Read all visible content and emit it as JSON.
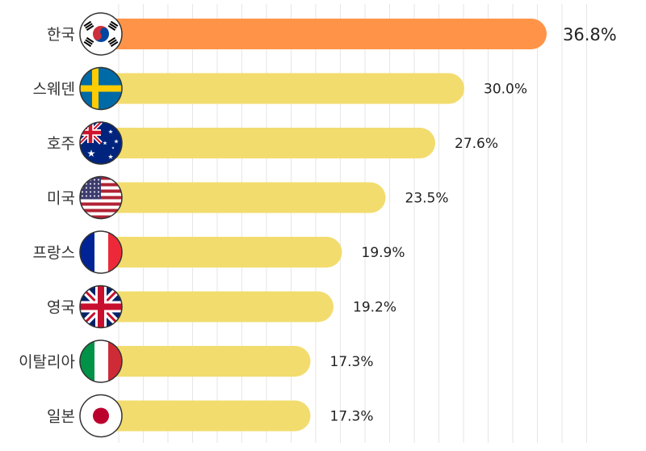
{
  "chart_data": {
    "type": "bar",
    "orientation": "horizontal",
    "title": "",
    "xlabel": "",
    "ylabel": "",
    "xlim": [
      0,
      40
    ],
    "grid": true,
    "categories": [
      "한국",
      "스웨덴",
      "호주",
      "미국",
      "프랑스",
      "영국",
      "이탈리아",
      "일본"
    ],
    "values": [
      36.8,
      30.0,
      27.6,
      23.5,
      19.9,
      19.2,
      17.3,
      17.3
    ],
    "value_labels": [
      "36.8%",
      "30.0%",
      "27.6%",
      "23.5%",
      "19.9%",
      "19.2%",
      "17.3%",
      "17.3%"
    ],
    "flag_icons": [
      "south-korea-flag-icon",
      "sweden-flag-icon",
      "australia-flag-icon",
      "usa-flag-icon",
      "france-flag-icon",
      "uk-flag-icon",
      "italy-flag-icon",
      "japan-flag-icon"
    ],
    "colors": {
      "highlight": "#FF9448",
      "bar": "#F2DC6E",
      "grid": "#E6E6E6"
    }
  }
}
